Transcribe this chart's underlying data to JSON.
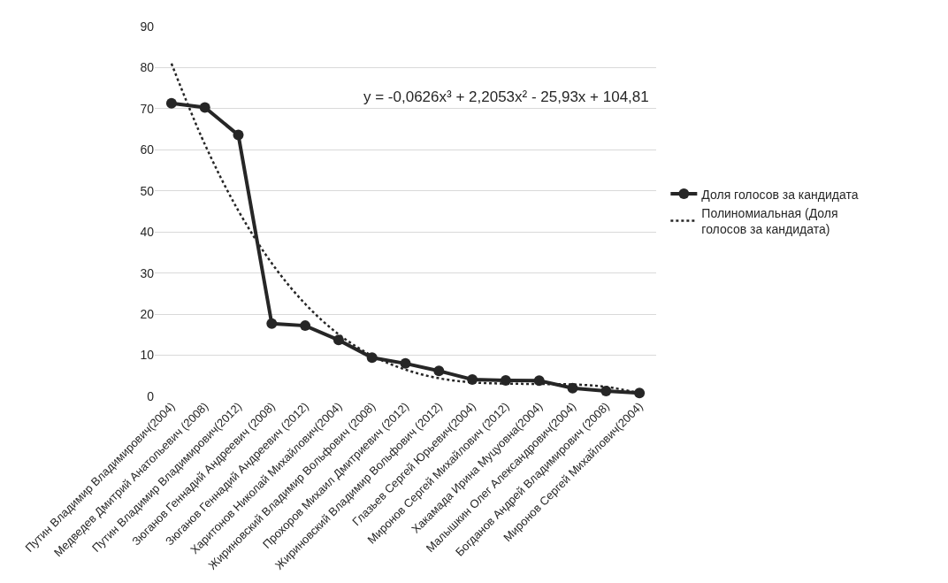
{
  "chart_data": {
    "type": "line",
    "categories": [
      "Путин Владимир Владимирович(2004)",
      "Медведев Дмитрий Анатольевич (2008)",
      "Путин Владимир Владимирович(2012)",
      "Зюганов Геннадий Андреевич (2008)",
      "Зюганов Геннадий Андреевич (2012)",
      "Харитонов Николай Михайлович(2004)",
      "Жириновский Владимир Вольфович (2008)",
      "Прохоров Михаил Дмитриевич (2012)",
      "Жириновский Владимир Вольфович (2012)",
      "Глазьев Сергей Юрьевич(2004)",
      "Миронов Сергей Михайлович (2012)",
      "Хакамада Ирина Муцуовна(2004)",
      "Малышкин Олег Александрович(2004)",
      "Богданов Андрей Владимирович (2008)",
      "Миронов Сергей Михайлович(2004)"
    ],
    "series": [
      {
        "name": "Доля голосов за кандидата",
        "color": "#262626",
        "marker": "circle",
        "line_style": "solid",
        "values": [
          71.3,
          70.3,
          63.6,
          17.7,
          17.2,
          13.7,
          9.4,
          8.0,
          6.2,
          4.1,
          3.9,
          3.8,
          2.0,
          1.3,
          0.8
        ]
      },
      {
        "name": "Полиномиальная (Доля голосов за кандидата)",
        "color": "#262626",
        "marker": "none",
        "line_style": "dotted",
        "values": [
          81.0,
          61.3,
          45.2,
          32.4,
          22.5,
          15.1,
          9.9,
          6.5,
          4.4,
          3.4,
          3.1,
          3.0,
          2.9,
          2.3,
          0.8
        ]
      }
    ],
    "ylim": [
      0,
      90
    ],
    "yticks": [
      0,
      10,
      20,
      30,
      40,
      50,
      60,
      70,
      80,
      90
    ],
    "grid": "y",
    "legend": "right",
    "annotations": [
      "y = -0,0626x³ + 2,2053x² - 25,93x + 104,81"
    ]
  }
}
